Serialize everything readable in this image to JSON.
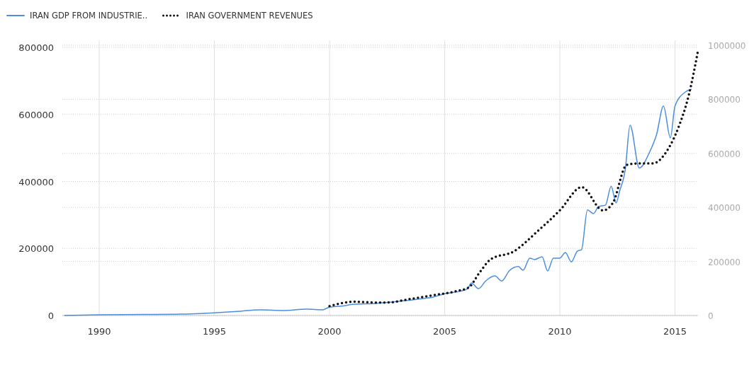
{
  "chart_data": {
    "type": "line",
    "xlim": [
      1988.4,
      2016
    ],
    "xticks": [
      1990,
      1995,
      2000,
      2005,
      2010,
      2015
    ],
    "ylim": [
      0,
      800000
    ],
    "yticks": [
      0,
      200000,
      400000,
      600000,
      800000
    ],
    "y2lim": [
      0,
      1000000
    ],
    "y2ticks": [
      0,
      200000,
      400000,
      600000,
      800000,
      1000000
    ],
    "grid": true,
    "legend": "top left",
    "series": [
      {
        "name": "IRAN GDP FROM INDUSTRIE..",
        "color": "#4a8ee0",
        "line_style": "solid",
        "x": [
          1988.5,
          1990,
          1992,
          1994,
          1995,
          1996,
          1997,
          1998,
          1999,
          1999.7,
          2000,
          2000.5,
          2001,
          2002,
          2003,
          2004,
          2004.5,
          2005,
          2005.5,
          2006,
          2006.16,
          2006.47,
          2006.78,
          2007.18,
          2007.48,
          2007.8,
          2008.2,
          2008.4,
          2008.7,
          2008.9,
          2009.23,
          2009.47,
          2009.72,
          2010,
          2010.24,
          2010.5,
          2010.76,
          2010.94,
          2011.2,
          2011.46,
          2011.68,
          2011.98,
          2012.23,
          2012.44,
          2012.6,
          2012.84,
          2013.05,
          2013.45,
          2013.9,
          2014.2,
          2014.5,
          2014.8,
          2015,
          2015.45,
          2015.7
        ],
        "values": [
          0,
          2000,
          3000,
          5000,
          8000,
          12000,
          17000,
          15000,
          19000,
          17000,
          25000,
          28000,
          33000,
          36000,
          42000,
          50000,
          55000,
          65000,
          70000,
          80000,
          97000,
          80000,
          103000,
          118000,
          103000,
          133000,
          146000,
          135000,
          171000,
          167000,
          175000,
          133000,
          171000,
          171000,
          188000,
          160000,
          192000,
          196000,
          315000,
          304000,
          325000,
          329000,
          386000,
          336000,
          372000,
          435000,
          568000,
          440000,
          488000,
          540000,
          625000,
          530000,
          625000,
          667000,
          675000
        ]
      },
      {
        "name": "IRAN GOVERNMENT REVENUES",
        "color": "#111111",
        "line_style": "dotted",
        "axis": "y2",
        "x": [
          2000,
          2001.1,
          2001.95,
          2002.5,
          2003.5,
          2004.5,
          2005.55,
          2006.05,
          2006.5,
          2007,
          2008,
          2009,
          2010,
          2010.95,
          2011.87,
          2012.3,
          2012.9,
          2013.45,
          2014.05,
          2014.7,
          2015.15,
          2015.6,
          2016
        ],
        "values": [
          35000,
          51000,
          48000,
          48000,
          61000,
          75000,
          91000,
          104000,
          157000,
          208000,
          237000,
          309000,
          389000,
          475000,
          389000,
          416000,
          557000,
          563000,
          563000,
          616000,
          696000,
          816000,
          980000
        ]
      }
    ]
  }
}
